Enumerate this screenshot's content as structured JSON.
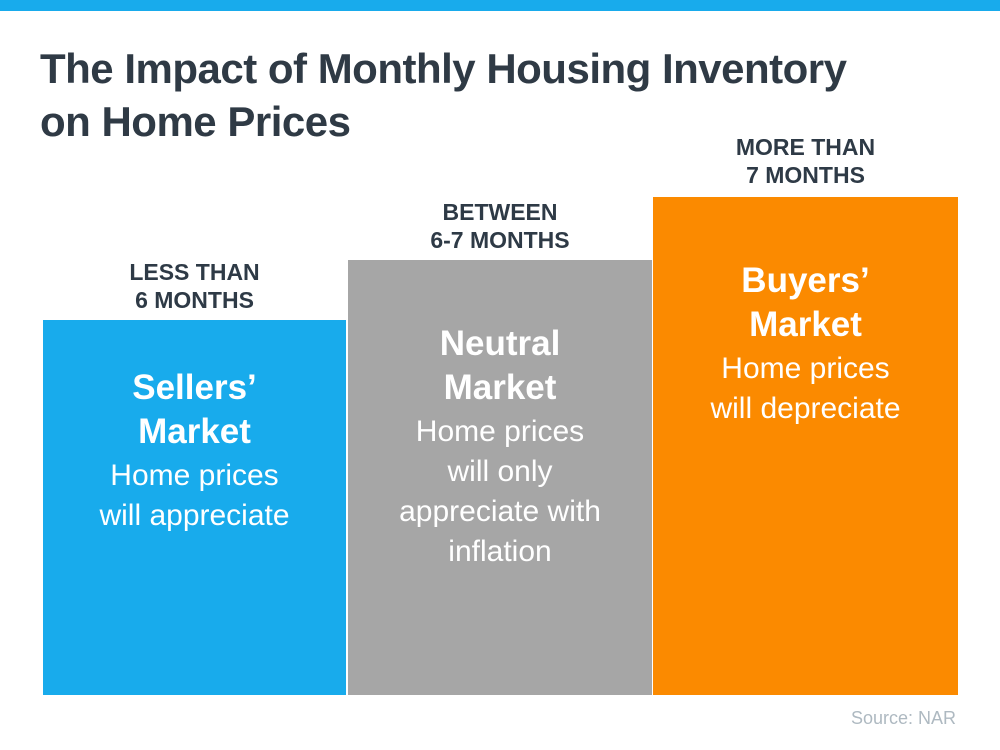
{
  "header": {
    "title_line1": "The Impact of Monthly Housing Inventory",
    "title_line2": "on Home Prices"
  },
  "colors": {
    "top_bar": "#18abec",
    "sellers_bar": "#18abec",
    "neutral_bar": "#a6a6a6",
    "buyers_bar": "#fb8a00",
    "title_text": "#2f3a45",
    "label_text": "#2e3a46",
    "bar_text": "#ffffff",
    "source_text": "#aeb9c1"
  },
  "columns": [
    {
      "id": "sellers-market",
      "label_lines": [
        "LESS THAN",
        "6 MONTHS"
      ],
      "heading_lines": [
        "Sellers’",
        "Market"
      ],
      "body_lines": [
        "Home prices",
        "will appreciate"
      ],
      "color": "#18abec"
    },
    {
      "id": "neutral-market",
      "label_lines": [
        "BETWEEN",
        "6-7 MONTHS"
      ],
      "heading_lines": [
        "Neutral",
        "Market"
      ],
      "body_lines": [
        "Home prices",
        "will only",
        "appreciate with",
        "inflation"
      ],
      "color": "#a6a6a6"
    },
    {
      "id": "buyers-market",
      "label_lines": [
        "MORE THAN",
        "7 MONTHS"
      ],
      "heading_lines": [
        "Buyers’",
        "Market"
      ],
      "body_lines": [
        "Home prices",
        "will depreciate"
      ],
      "color": "#fb8a00"
    }
  ],
  "footer": {
    "source": "Source: NAR"
  },
  "chart_data": {
    "type": "bar",
    "title": "The Impact of Monthly Housing Inventory on Home Prices",
    "categories": [
      "LESS THAN 6 MONTHS",
      "BETWEEN 6-7 MONTHS",
      "MORE THAN 7 MONTHS"
    ],
    "series": [
      {
        "name": "relative-bar-height-px (conceptual, no numeric axis shown)",
        "values": [
          375,
          435,
          498
        ]
      }
    ],
    "bar_colors": [
      "#18abec",
      "#a6a6a6",
      "#fb8a00"
    ],
    "bar_annotations": [
      "Sellers’ Market — Home prices will appreciate",
      "Neutral Market — Home prices will only appreciate with inflation",
      "Buyers’ Market — Home prices will depreciate"
    ],
    "xlabel": "",
    "ylabel": "",
    "grid": false,
    "legend": false,
    "axes_shown": false,
    "source": "Source: NAR"
  }
}
